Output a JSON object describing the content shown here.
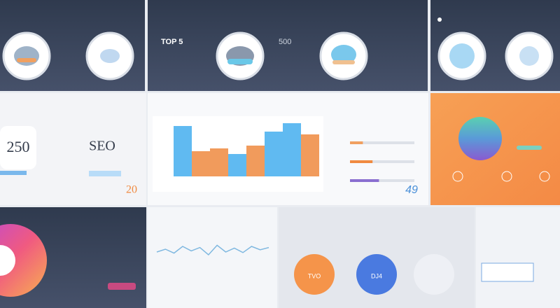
{
  "header": {
    "label_a": "TOP 5",
    "label_b": "500"
  },
  "stats": {
    "big": "250",
    "seo": "SEO",
    "small": "20",
    "corner": "49"
  },
  "bottom": {
    "orange": "TVO",
    "blue": "DJ4"
  },
  "bar_chart": {
    "type": "bar",
    "values": [
      90,
      45,
      50,
      40,
      55,
      80,
      95,
      75
    ],
    "colors": [
      "#4fb3f0",
      "#f0904a",
      "#f0904a",
      "#4fb3f0",
      "#f0904a",
      "#4fb3f0",
      "#4fb3f0",
      "#f0904a"
    ],
    "ylim": [
      0,
      100
    ]
  },
  "progress": {
    "type": "bar",
    "values": [
      20,
      35,
      45
    ],
    "colors": [
      "#f0a060",
      "#f08a40",
      "#8a6fd0"
    ],
    "xlim": [
      0,
      100
    ]
  },
  "line_chart": {
    "type": "line",
    "values": [
      50,
      55,
      48,
      60,
      52,
      58,
      45,
      62,
      50,
      57,
      49,
      60,
      54,
      58
    ],
    "color": "#7fb8e0",
    "ylim": [
      0,
      100
    ]
  }
}
